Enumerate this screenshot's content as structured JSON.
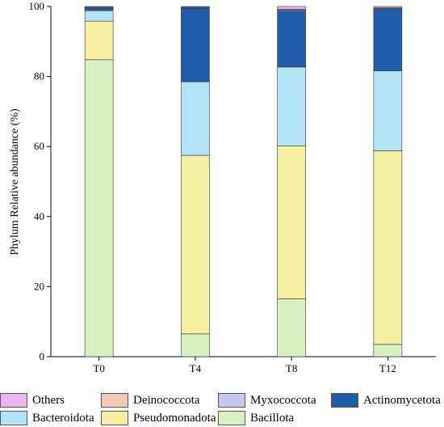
{
  "chart_data": {
    "type": "bar",
    "stacked": true,
    "ylabel": "Phylum Relative abundance (%)",
    "xlabel": "",
    "ylim": [
      0,
      100
    ],
    "yticks": [
      0,
      20,
      40,
      60,
      80,
      100
    ],
    "categories": [
      "T0",
      "T4",
      "T8",
      "T12"
    ],
    "series": [
      {
        "name": "Bacillota",
        "color": "#d9f0c0",
        "values": [
          84.8,
          6.5,
          16.5,
          3.5
        ]
      },
      {
        "name": "Pseudomonadota",
        "color": "#f7f0a3",
        "values": [
          11.0,
          51.0,
          43.7,
          55.3
        ]
      },
      {
        "name": "Bacteroidota",
        "color": "#b2e3f7",
        "values": [
          3.0,
          21.0,
          22.5,
          22.8
        ]
      },
      {
        "name": "Actinomycetota",
        "color": "#1f5cab",
        "values": [
          0.7,
          21.0,
          16.0,
          17.7
        ]
      },
      {
        "name": "Myxococcota",
        "color": "#c6c6ee",
        "values": [
          0.2,
          0.2,
          0.3,
          0.2
        ]
      },
      {
        "name": "Deinococcota",
        "color": "#f4c9b3",
        "values": [
          0.1,
          0.1,
          0.2,
          0.1
        ]
      },
      {
        "name": "Others",
        "color": "#eab8ee",
        "values": [
          0.2,
          0.2,
          0.8,
          0.4
        ]
      }
    ]
  },
  "legend": [
    {
      "label": "Others",
      "color": "#eab8ee"
    },
    {
      "label": "Deinococcota",
      "color": "#f4c9b3"
    },
    {
      "label": "Myxococcota",
      "color": "#c6c6ee"
    },
    {
      "label": "Actinomycetota",
      "color": "#1f5cab"
    },
    {
      "label": "Bacteroidota",
      "color": "#b2e3f7"
    },
    {
      "label": "Pseudomonadota",
      "color": "#f7f0a3"
    },
    {
      "label": "Bacillota",
      "color": "#d9f0c0"
    }
  ]
}
